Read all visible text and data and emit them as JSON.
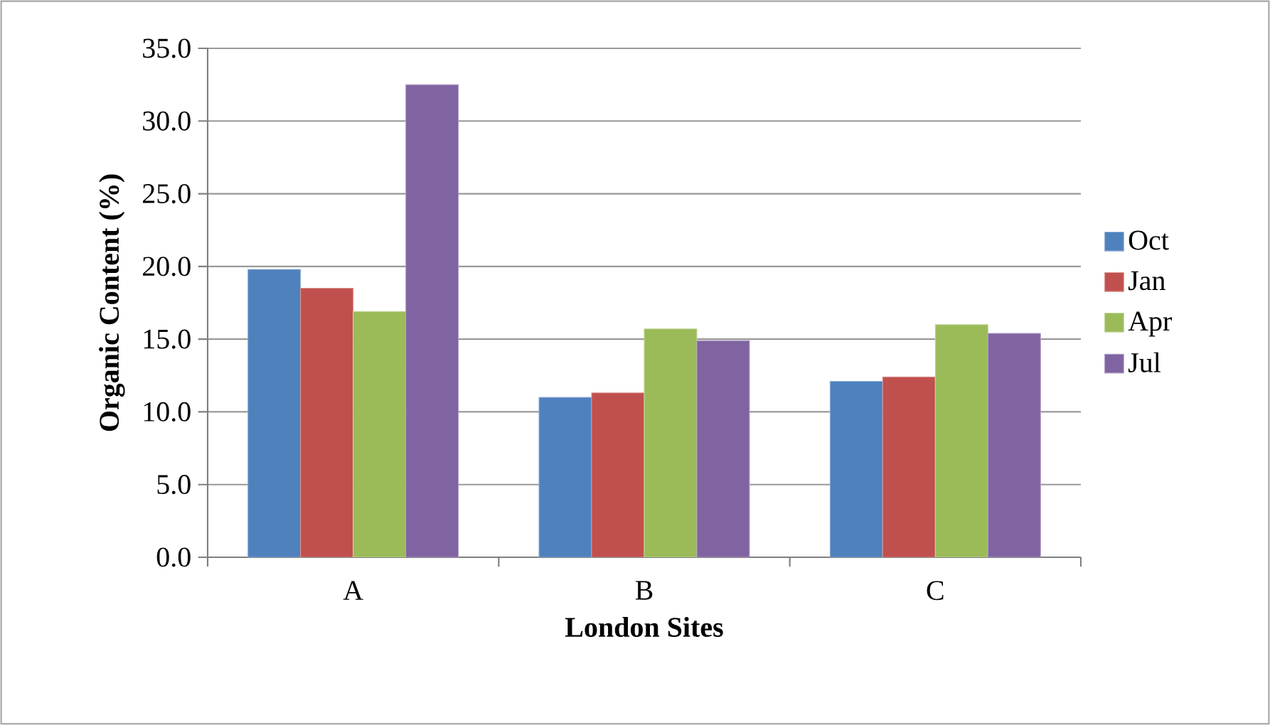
{
  "chart_data": {
    "type": "bar",
    "xlabel": "London Sites",
    "ylabel": "Organic Content (%)",
    "categories": [
      "A",
      "B",
      "C"
    ],
    "series": [
      {
        "name": "Oct",
        "color": "#4f81bd",
        "values": [
          19.8,
          11.0,
          12.1
        ]
      },
      {
        "name": "Jan",
        "color": "#c0504d",
        "values": [
          18.5,
          11.3,
          12.4
        ]
      },
      {
        "name": "Apr",
        "color": "#9bbb59",
        "values": [
          16.9,
          15.7,
          16.0
        ]
      },
      {
        "name": "Jul",
        "color": "#8064a2",
        "values": [
          32.5,
          14.9,
          15.4
        ]
      }
    ],
    "ylim": [
      0,
      35
    ],
    "yticks": [
      {
        "value": 0,
        "label": "0.0"
      },
      {
        "value": 5,
        "label": "5.0"
      },
      {
        "value": 10,
        "label": "10.0"
      },
      {
        "value": 15,
        "label": "15.0"
      },
      {
        "value": 20,
        "label": "20.0"
      },
      {
        "value": 25,
        "label": "25.0"
      },
      {
        "value": 30,
        "label": "30.0"
      },
      {
        "value": 35,
        "label": "35.0"
      }
    ],
    "grid": "y",
    "legend": "right"
  }
}
